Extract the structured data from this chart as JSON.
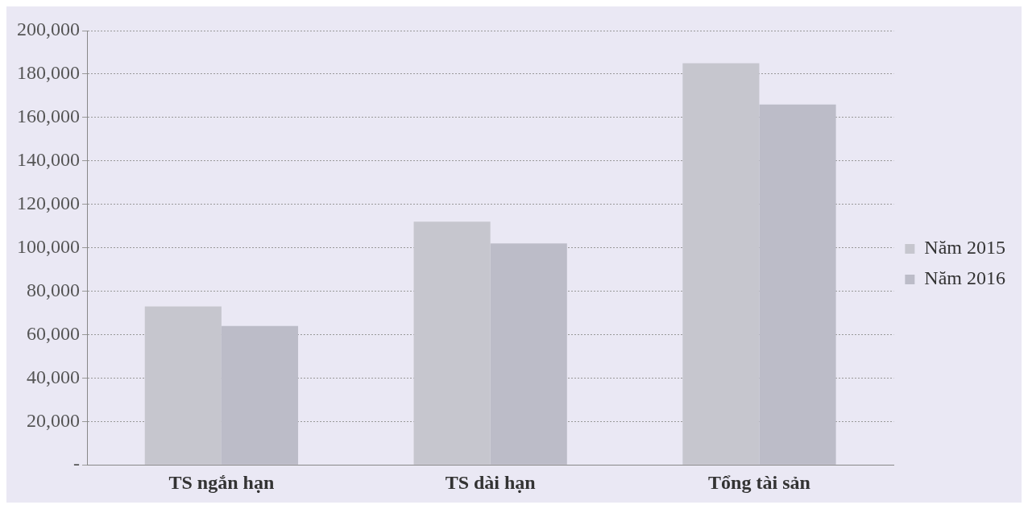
{
  "chart_data": {
    "type": "bar",
    "categories": [
      "TS ngắn hạn",
      "TS dài hạn",
      "Tổng tài sản"
    ],
    "series": [
      {
        "name": "Năm 2015",
        "color": "#c6c6ce",
        "values": [
          73000,
          112000,
          185000
        ]
      },
      {
        "name": "Năm 2016",
        "color": "#bcbcc8",
        "values": [
          64000,
          102000,
          166000
        ]
      }
    ],
    "ylim": [
      0,
      200000
    ],
    "yticks": [
      {
        "value": 0,
        "label": "-"
      },
      {
        "value": 20000,
        "label": "20,000"
      },
      {
        "value": 40000,
        "label": "40,000"
      },
      {
        "value": 60000,
        "label": "60,000"
      },
      {
        "value": 80000,
        "label": "80,000"
      },
      {
        "value": 100000,
        "label": "100,000"
      },
      {
        "value": 120000,
        "label": "120,000"
      },
      {
        "value": 140000,
        "label": "140,000"
      },
      {
        "value": 160000,
        "label": "160,000"
      },
      {
        "value": 180000,
        "label": "180,000"
      },
      {
        "value": 200000,
        "label": "200,000"
      }
    ],
    "grid": "y",
    "legend": "right"
  }
}
